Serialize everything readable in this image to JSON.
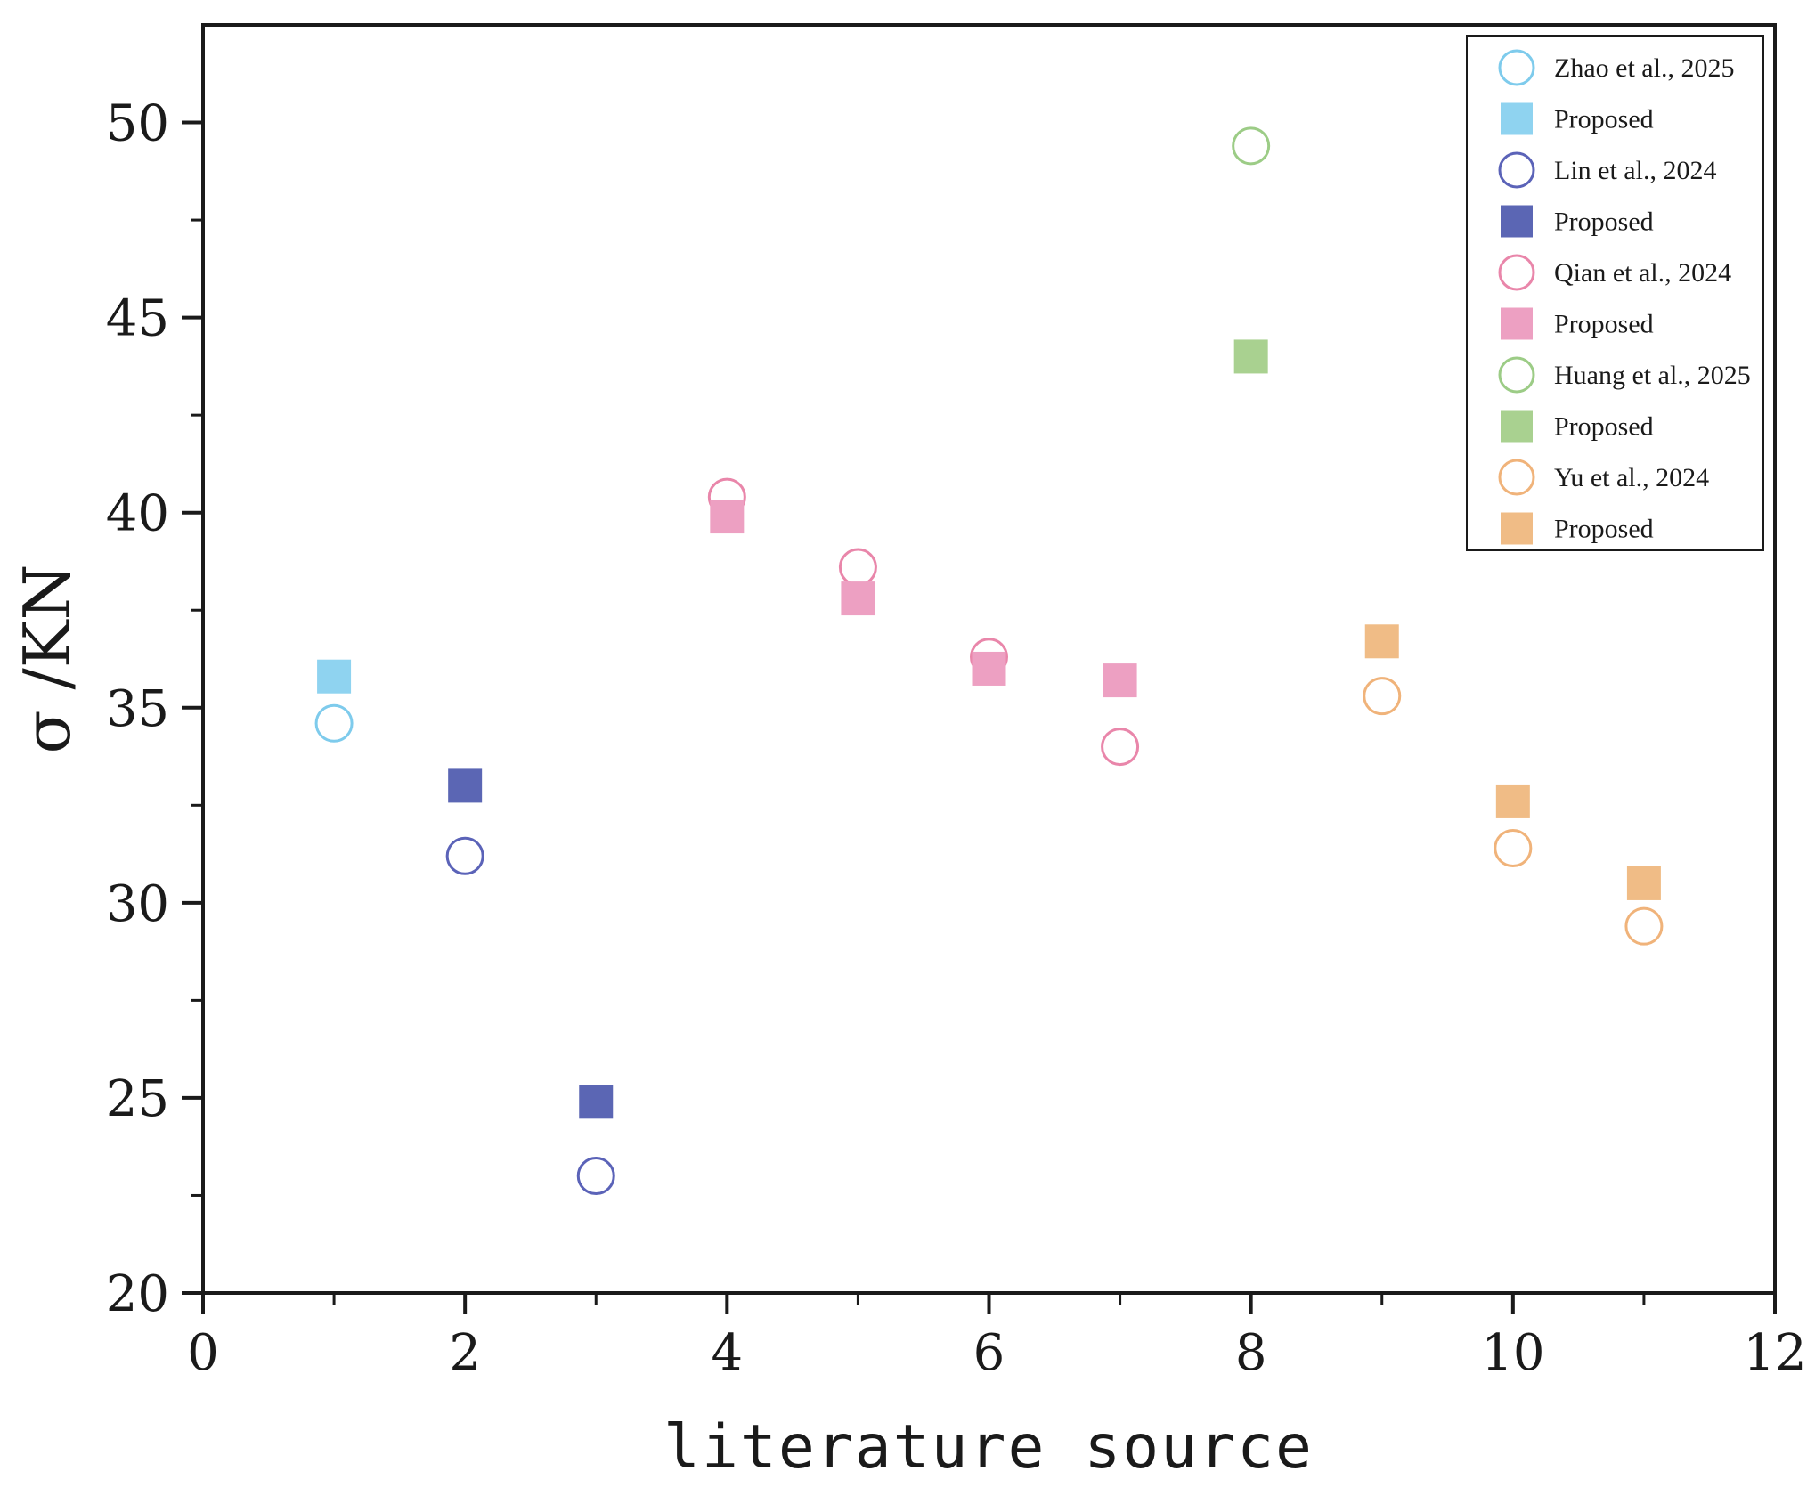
{
  "chart_data": {
    "type": "scatter",
    "xlabel": "literature source",
    "ylabel": "σ /KN",
    "xlim": [
      0,
      12
    ],
    "ylim": [
      20,
      52.5
    ],
    "xticks": [
      0,
      2,
      4,
      6,
      8,
      10,
      12
    ],
    "yticks": [
      20,
      25,
      30,
      35,
      40,
      45,
      50
    ],
    "grid": false,
    "legend_position": "top-right",
    "series": [
      {
        "name": "Zhao et al., 2025",
        "marker": "open-circle",
        "color": "#7ecbec",
        "points": [
          {
            "x": 1,
            "y": 34.6
          }
        ]
      },
      {
        "name": "Proposed",
        "marker": "filled-square",
        "color": "#8fd3f0",
        "points": [
          {
            "x": 1,
            "y": 35.8
          }
        ]
      },
      {
        "name": "Lin et al., 2024",
        "marker": "open-circle",
        "color": "#5b63b8",
        "points": [
          {
            "x": 2,
            "y": 31.2
          },
          {
            "x": 3,
            "y": 23.0
          }
        ]
      },
      {
        "name": "Proposed",
        "marker": "filled-square",
        "color": "#5b66b4",
        "points": [
          {
            "x": 2,
            "y": 33.0
          },
          {
            "x": 3,
            "y": 24.9
          }
        ]
      },
      {
        "name": "Qian et al., 2024",
        "marker": "open-circle",
        "color": "#e986aa",
        "points": [
          {
            "x": 4,
            "y": 40.4
          },
          {
            "x": 5,
            "y": 38.6
          },
          {
            "x": 6,
            "y": 36.3
          },
          {
            "x": 7,
            "y": 34.0
          }
        ]
      },
      {
        "name": "Proposed",
        "marker": "filled-square",
        "color": "#eda0c2",
        "points": [
          {
            "x": 4,
            "y": 39.9
          },
          {
            "x": 5,
            "y": 37.8
          },
          {
            "x": 6,
            "y": 36.0
          },
          {
            "x": 7,
            "y": 35.7
          }
        ]
      },
      {
        "name": "Huang et al., 2025",
        "marker": "open-circle",
        "color": "#9ccc86",
        "points": [
          {
            "x": 8,
            "y": 49.4
          }
        ]
      },
      {
        "name": "Proposed",
        "marker": "filled-square",
        "color": "#a9d190",
        "points": [
          {
            "x": 8,
            "y": 44.0
          }
        ]
      },
      {
        "name": "Yu et al., 2024",
        "marker": "open-circle",
        "color": "#f0b37a",
        "points": [
          {
            "x": 9,
            "y": 35.3
          },
          {
            "x": 10,
            "y": 31.4
          },
          {
            "x": 11,
            "y": 29.4
          }
        ]
      },
      {
        "name": "Proposed",
        "marker": "filled-square",
        "color": "#f0bc86",
        "points": [
          {
            "x": 9,
            "y": 36.7
          },
          {
            "x": 10,
            "y": 32.6
          },
          {
            "x": 11,
            "y": 30.5
          }
        ]
      }
    ]
  }
}
